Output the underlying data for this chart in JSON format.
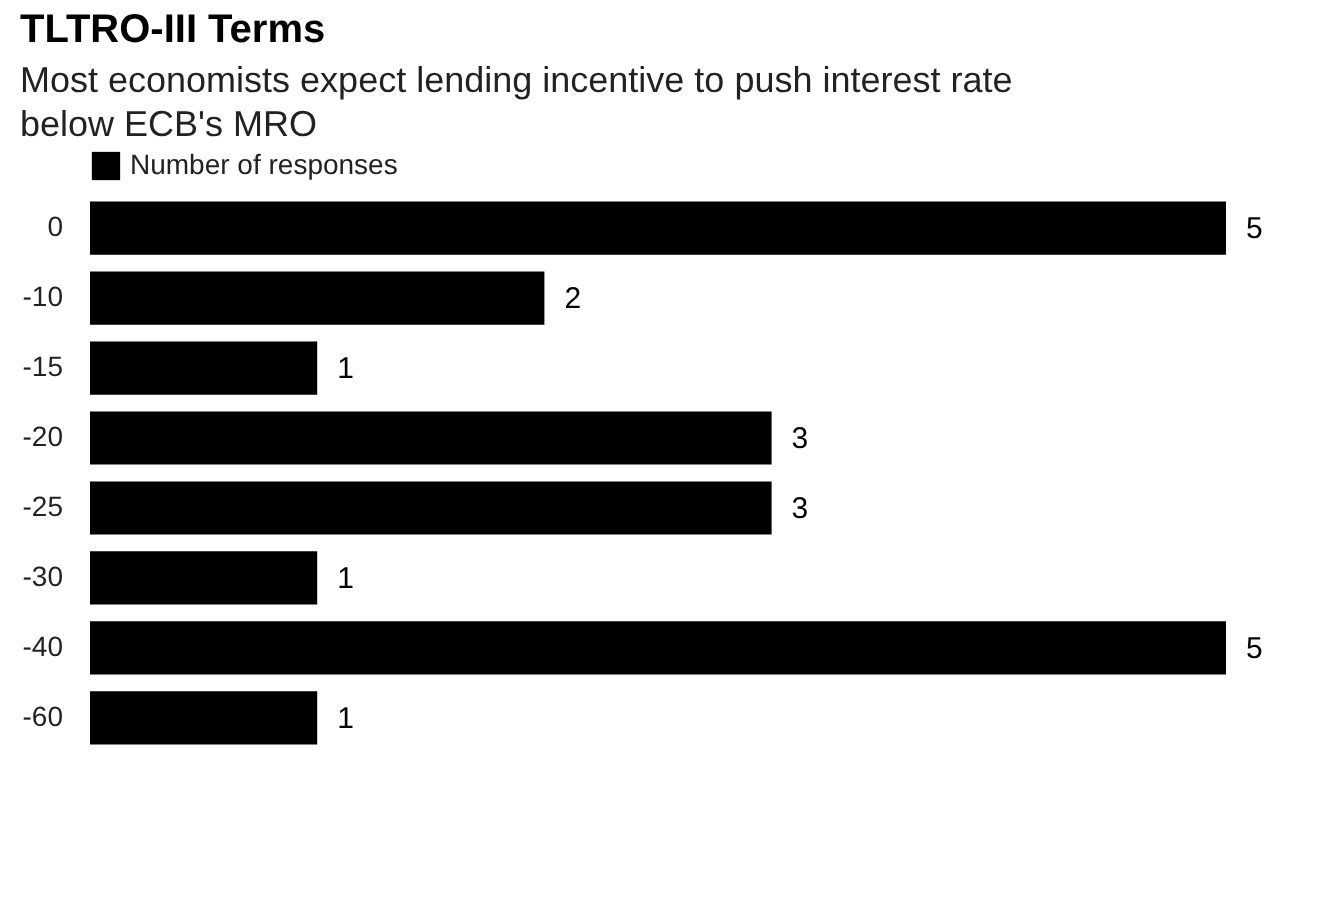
{
  "chart_data": {
    "type": "bar",
    "orientation": "horizontal",
    "title": "TLTRO-III Terms",
    "subtitle": "Most economists expect lending incentive to push interest rate below ECB's MRO",
    "categories": [
      "0",
      "-10",
      "-15",
      "-20",
      "-25",
      "-30",
      "-40",
      "-60"
    ],
    "series": [
      {
        "name": "Number of responses",
        "color": "#000000",
        "values": [
          5,
          2,
          1,
          3,
          3,
          1,
          5,
          1
        ]
      }
    ],
    "xlim": [
      0,
      5
    ],
    "data_labels": true,
    "legend": "top left"
  }
}
